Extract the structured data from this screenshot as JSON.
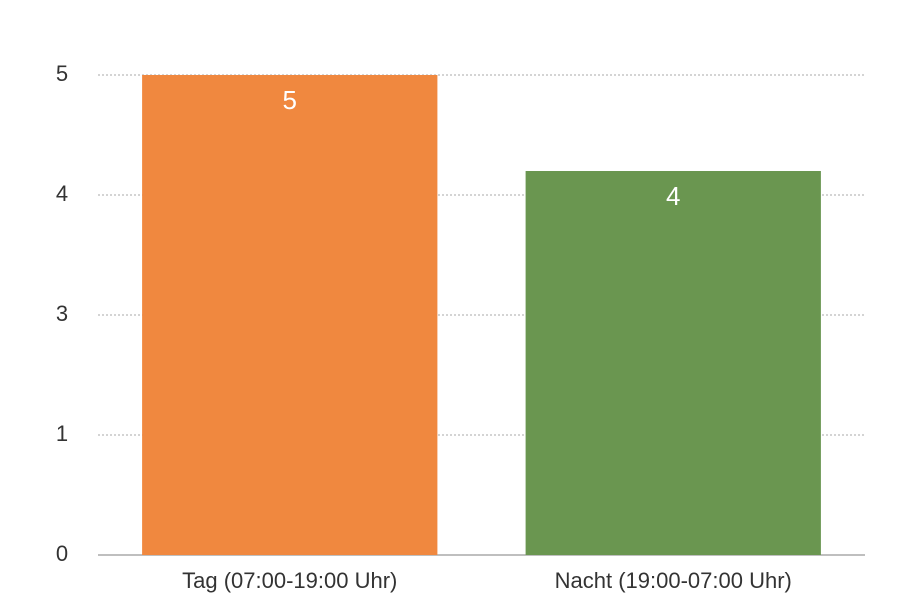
{
  "chart_data": {
    "type": "bar",
    "categories": [
      "Tag (07:00-19:00 Uhr)",
      "Nacht (19:00-07:00 Uhr)"
    ],
    "values": [
      5,
      4
    ],
    "colors": [
      "#f0883f",
      "#6a9650"
    ],
    "ylim": [
      0,
      5
    ],
    "yticks": [
      0,
      {
        "value": 1.25,
        "label": "1"
      },
      {
        "value": 2.5,
        "label": "3"
      },
      {
        "value": 3.75,
        "label": "4"
      },
      5
    ],
    "grid": true
  }
}
